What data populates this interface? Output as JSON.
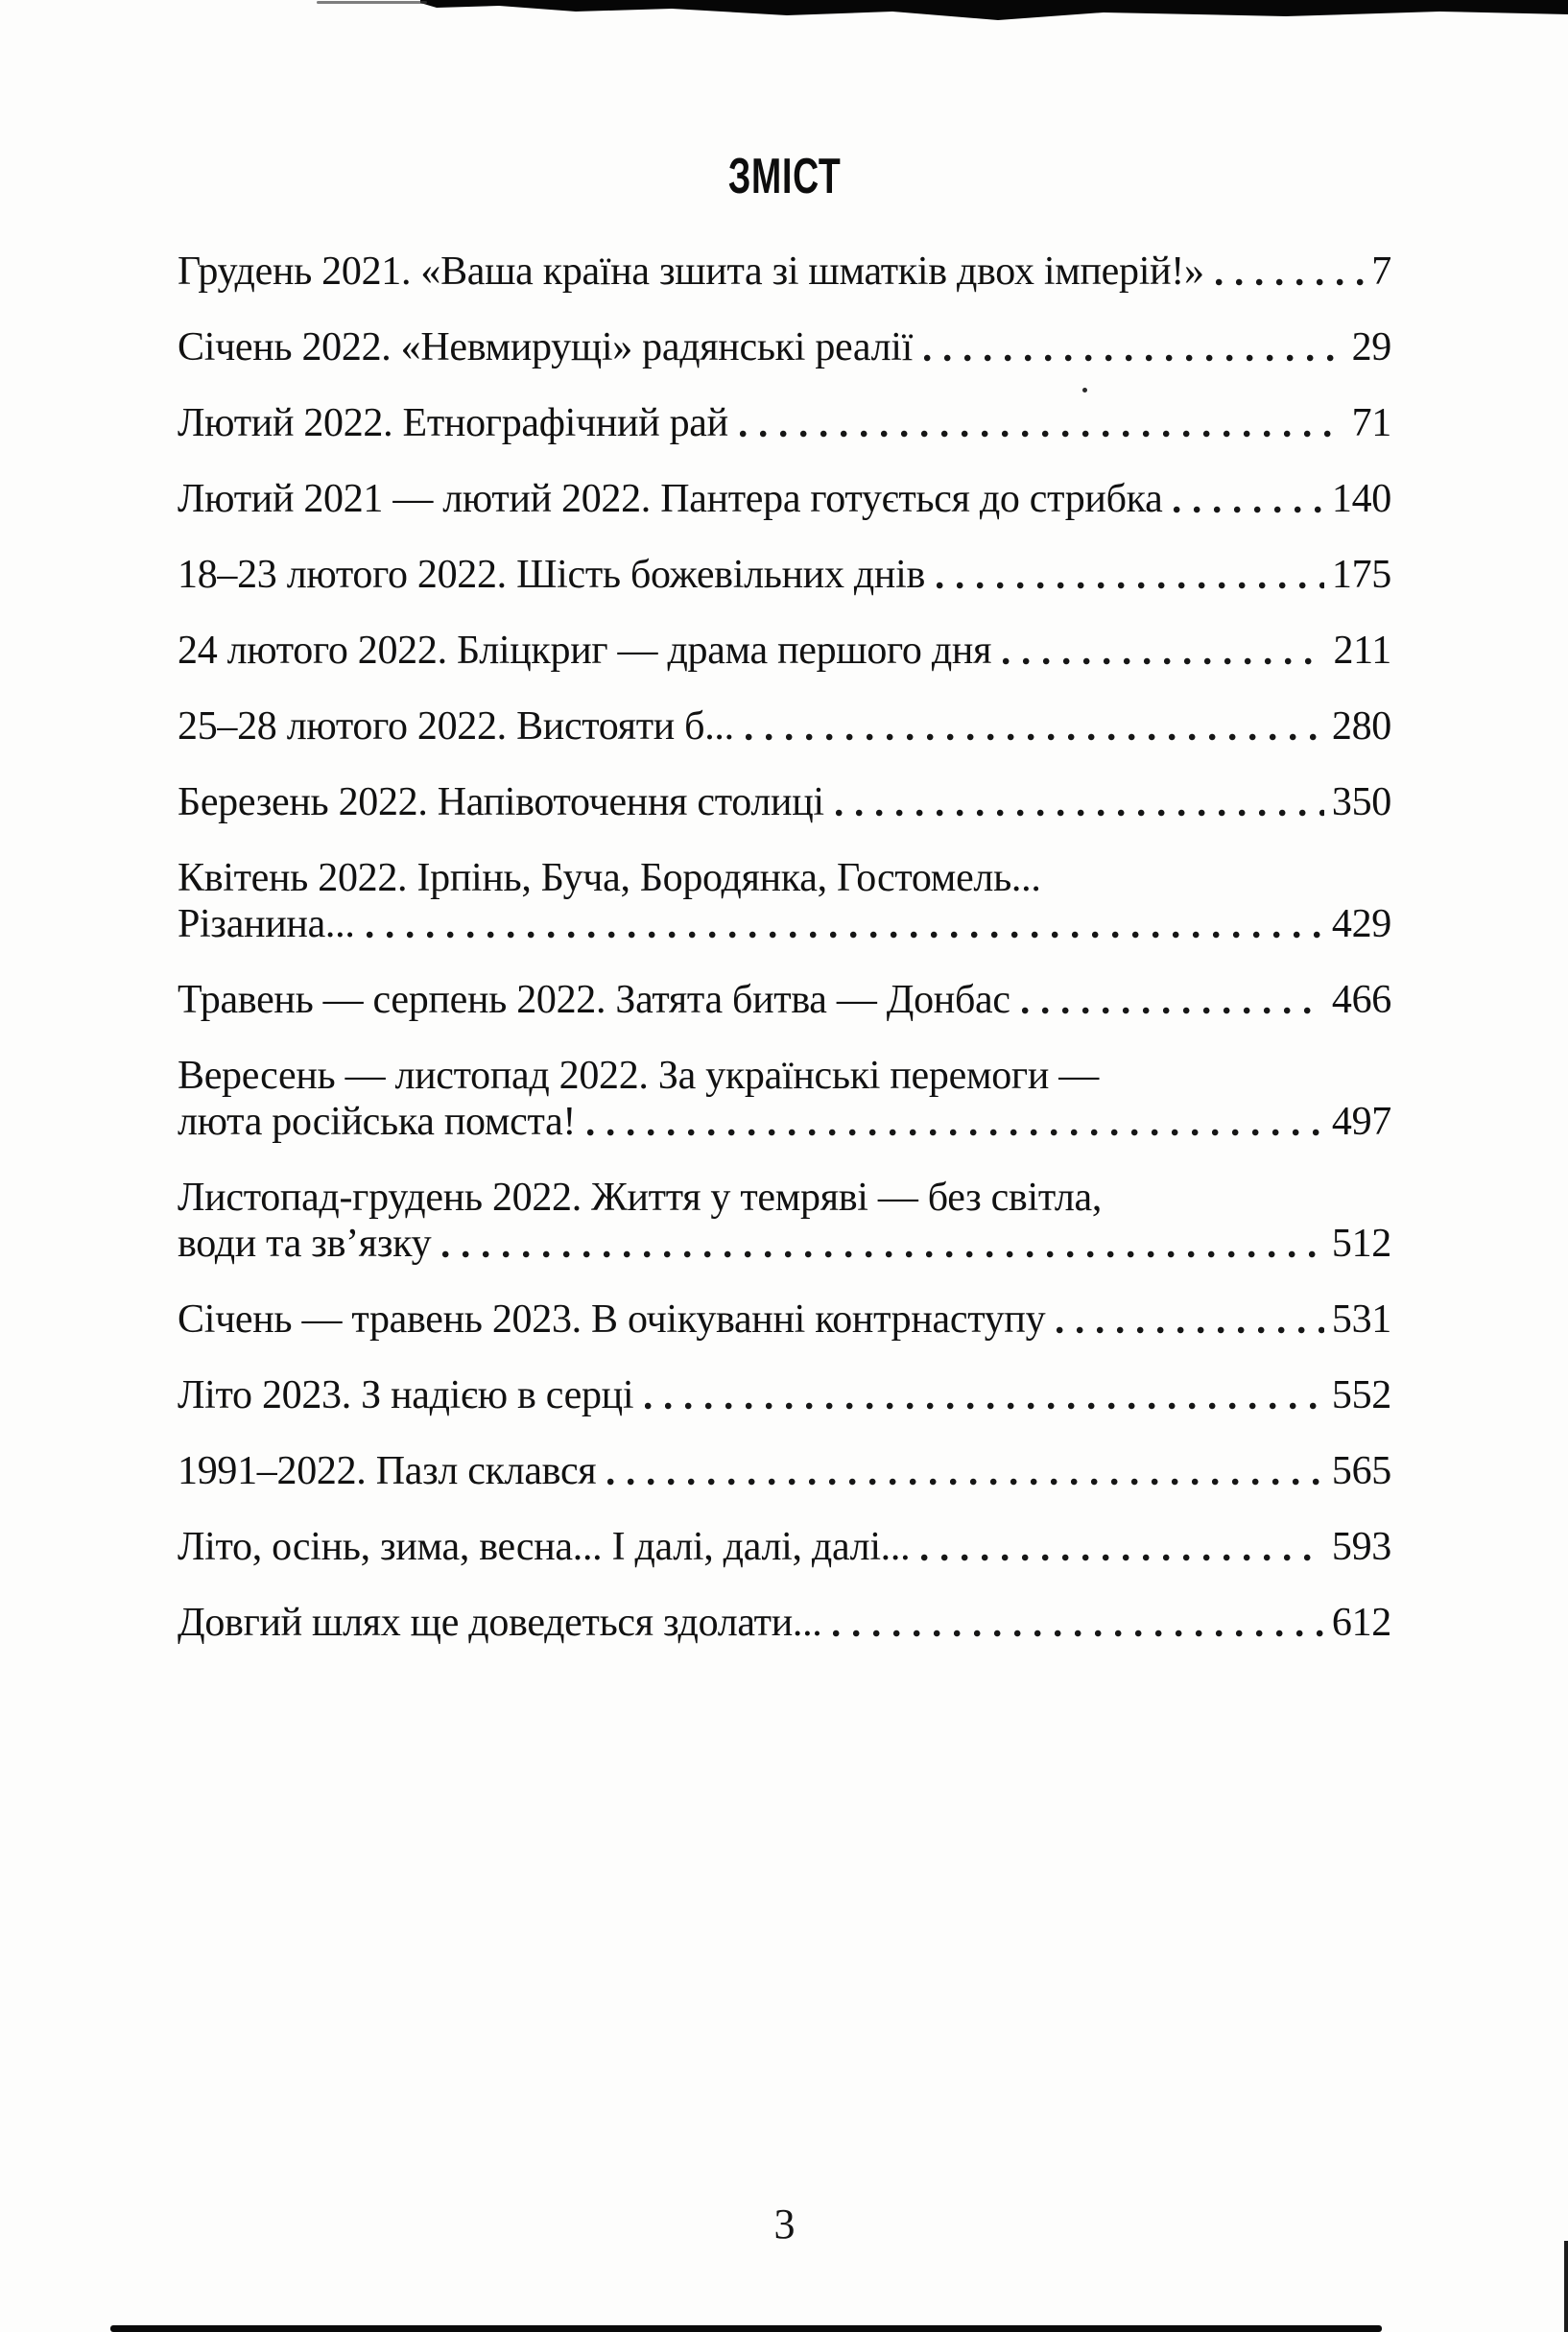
{
  "page": {
    "title": "ЗМІСТ",
    "folio": "3"
  },
  "toc": {
    "entries": [
      {
        "text": "Грудень 2021. «Ваша країна зшита зі шматків двох імперій!»",
        "page": "7"
      },
      {
        "text": "Січень 2022. «Невмирущі» радянські реалії",
        "page": "29"
      },
      {
        "text": "Лютий 2022. Етнографічний рай",
        "page": "71"
      },
      {
        "text": "Лютий 2021 — лютий 2022. Пантера готується до стрибка",
        "page": "140"
      },
      {
        "text": "18–23 лютого 2022. Шість божевільних днів",
        "page": "175"
      },
      {
        "text": "24 лютого 2022. Бліцкриг — драма першого дня",
        "page": "211"
      },
      {
        "text": "25–28 лютого 2022. Вистояти б...",
        "page": "280"
      },
      {
        "text": "Березень 2022. Напівоточення столиці",
        "page": "350"
      },
      {
        "text": "Квітень 2022. Ірпінь, Буча, Бородянка, Гостомель...",
        "text2": "Різанина...",
        "page": "429"
      },
      {
        "text": "Травень — серпень 2022. Затята битва — Донбас",
        "page": "466"
      },
      {
        "text": "Вересень — листопад 2022. За українські перемоги —",
        "text2": "люта російська помста!",
        "page": "497"
      },
      {
        "text": "Листопад-грудень 2022. Життя у темряві — без світла,",
        "text2": "води та зв’язку",
        "page": "512"
      },
      {
        "text": "Січень — травень 2023. В очікуванні контрнаступу",
        "page": "531"
      },
      {
        "text": "Літо 2023. З надією в серці",
        "page": "552"
      },
      {
        "text": "1991–2022. Пазл склався",
        "page": "565"
      },
      {
        "text": "Літо, осінь, зима, весна... І далі, далі, далі...",
        "page": "593"
      },
      {
        "text": "Довгий шлях ще доведеться здолати...",
        "page": "612"
      }
    ]
  }
}
